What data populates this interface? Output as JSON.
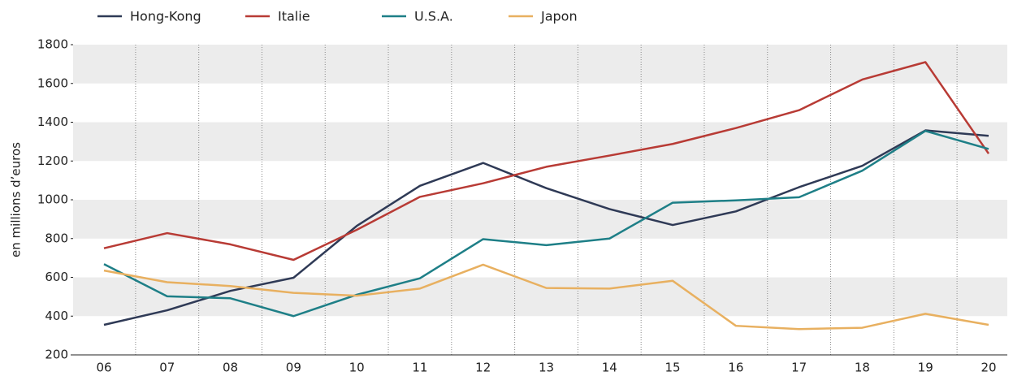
{
  "chart_data": {
    "type": "line",
    "y_axis_label": "en millions d’euros",
    "categories": [
      "06",
      "07",
      "08",
      "09",
      "10",
      "11",
      "12",
      "13",
      "14",
      "15",
      "16",
      "17",
      "18",
      "19",
      "20"
    ],
    "series": [
      {
        "name": "Hong-Kong",
        "color": "#2f3a56",
        "values": [
          355,
          430,
          530,
          598,
          865,
          1072,
          1190,
          1060,
          952,
          870,
          940,
          1065,
          1175,
          1358,
          1330
        ]
      },
      {
        "name": "Italie",
        "color": "#b83b35",
        "values": [
          750,
          828,
          770,
          690,
          845,
          1015,
          1085,
          1170,
          1228,
          1288,
          1370,
          1462,
          1620,
          1710,
          1238
        ]
      },
      {
        "name": "U.S.A.",
        "color": "#1e7f87",
        "values": [
          668,
          502,
          492,
          400,
          510,
          595,
          797,
          766,
          800,
          985,
          997,
          1013,
          1150,
          1355,
          1262
        ]
      },
      {
        "name": "Japon",
        "color": "#e8b060",
        "values": [
          635,
          575,
          555,
          520,
          505,
          542,
          665,
          545,
          542,
          582,
          350,
          333,
          340,
          412,
          355
        ]
      }
    ],
    "ylim": [
      200,
      1800
    ],
    "yticks": [
      200,
      400,
      600,
      800,
      1000,
      1200,
      1400,
      1600,
      1800
    ],
    "grid": "bands",
    "legend": "top"
  }
}
